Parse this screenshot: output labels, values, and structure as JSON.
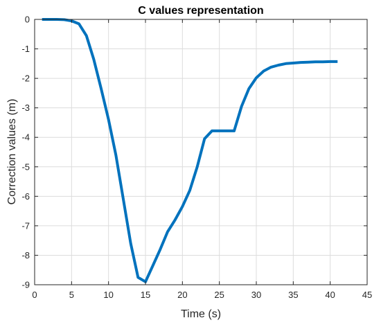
{
  "chart_data": {
    "type": "line",
    "title": "C values representation",
    "xlabel": "Time (s)",
    "ylabel": "Correction values (m)",
    "xlim": [
      0,
      45
    ],
    "ylim": [
      -9,
      0
    ],
    "x_ticks": [
      "0",
      "5",
      "10",
      "15",
      "20",
      "25",
      "30",
      "35",
      "40",
      "45"
    ],
    "y_ticks": [
      "0",
      "-1",
      "-2",
      "-3",
      "-4",
      "-5",
      "-6",
      "-7",
      "-8",
      "-9"
    ],
    "grid": true,
    "legend": "none",
    "series": [
      {
        "color": "#0072BD",
        "x": [
          1,
          2,
          3,
          4,
          5,
          6,
          7,
          8,
          9,
          10,
          11,
          12,
          13,
          14,
          15,
          16,
          17,
          18,
          19,
          20,
          21,
          22,
          23,
          24,
          25,
          26,
          27,
          28,
          29,
          30,
          31,
          32,
          33,
          34,
          35,
          36,
          37,
          38,
          39,
          40,
          41
        ],
        "y": [
          0,
          0,
          0,
          -0.01,
          -0.05,
          -0.15,
          -0.55,
          -1.35,
          -2.35,
          -3.4,
          -4.6,
          -6.1,
          -7.6,
          -8.75,
          -8.9,
          -8.35,
          -7.8,
          -7.2,
          -6.8,
          -6.35,
          -5.8,
          -5.0,
          -4.05,
          -3.78,
          -3.78,
          -3.78,
          -3.78,
          -2.95,
          -2.35,
          -1.98,
          -1.75,
          -1.62,
          -1.55,
          -1.5,
          -1.48,
          -1.46,
          -1.45,
          -1.44,
          -1.44,
          -1.43,
          -1.43
        ]
      }
    ]
  }
}
